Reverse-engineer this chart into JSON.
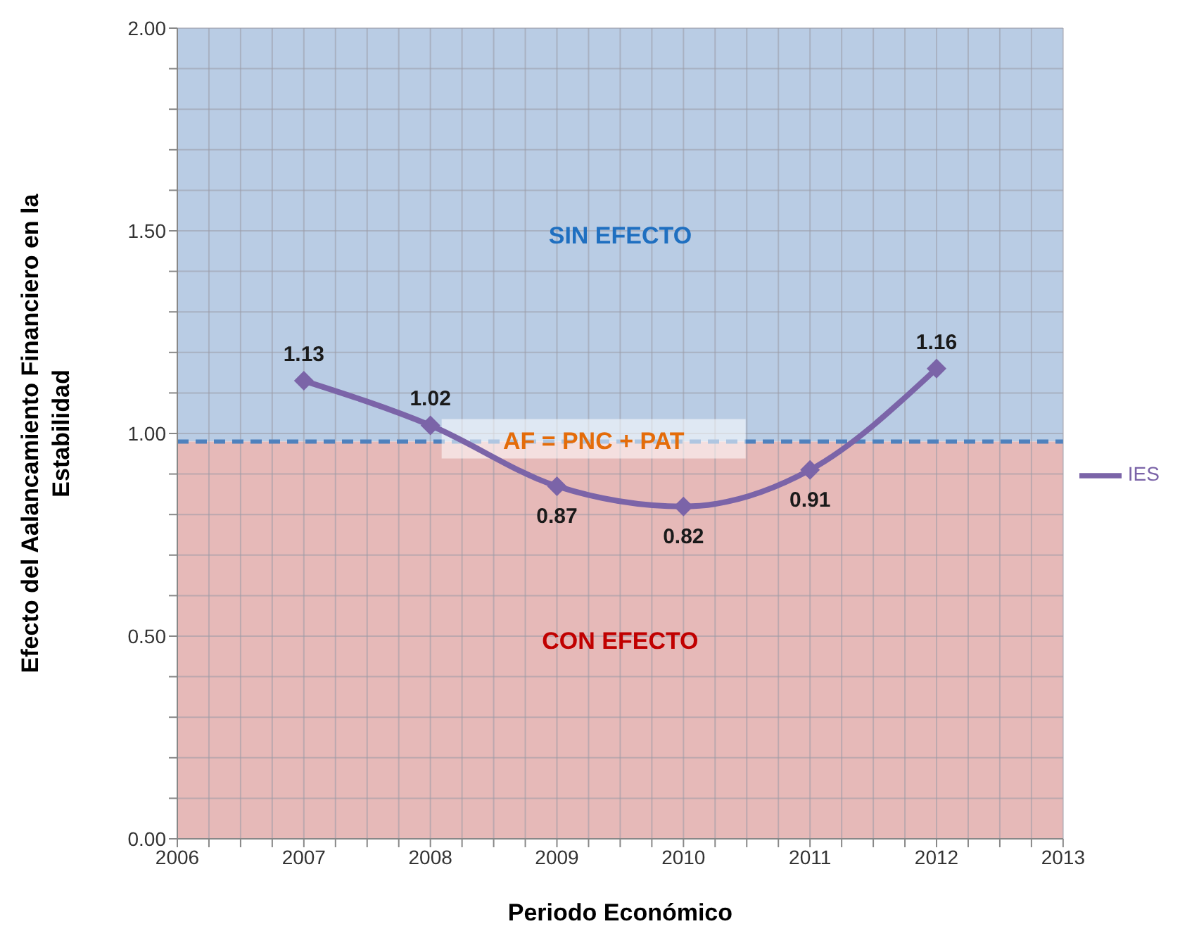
{
  "chart_data": {
    "type": "line",
    "xlabel": "Periodo Económico",
    "ylabel": "Efecto del Aalancamiento Financiero en la Estabilidad",
    "x": [
      2007,
      2008,
      2009,
      2010,
      2011,
      2012
    ],
    "series": [
      {
        "name": "IES",
        "color": "#7b64a8",
        "values": [
          1.13,
          1.02,
          0.87,
          0.82,
          0.91,
          1.16
        ]
      }
    ],
    "xlim": [
      2006,
      2013
    ],
    "xticks": [
      2006,
      {
        "value": 2006.25,
        "label": null
      },
      {
        "value": 2006.5,
        "label": null
      },
      {
        "value": 2006.75,
        "label": null
      },
      2007,
      {
        "value": 2007.25,
        "label": null
      },
      {
        "value": 2007.5,
        "label": null
      },
      {
        "value": 2007.75,
        "label": null
      },
      2008,
      {
        "value": 2008.25,
        "label": null
      },
      {
        "value": 2008.5,
        "label": null
      },
      {
        "value": 2008.75,
        "label": null
      },
      2009,
      {
        "value": 2009.25,
        "label": null
      },
      {
        "value": 2009.5,
        "label": null
      },
      {
        "value": 2009.75,
        "label": null
      },
      2010,
      {
        "value": 2010.25,
        "label": null
      },
      {
        "value": 2010.5,
        "label": null
      },
      {
        "value": 2010.75,
        "label": null
      },
      2011,
      {
        "value": 2011.25,
        "label": null
      },
      {
        "value": 2011.5,
        "label": null
      },
      {
        "value": 2011.75,
        "label": null
      },
      2012,
      {
        "value": 2012.25,
        "label": null
      },
      {
        "value": 2012.5,
        "label": null
      },
      {
        "value": 2012.75,
        "label": null
      },
      2013
    ],
    "ylim": [
      0,
      2
    ],
    "yticks": [
      {
        "value": 0,
        "label": "0.00"
      },
      {
        "value": 0.1,
        "label": null
      },
      {
        "value": 0.2,
        "label": null
      },
      {
        "value": 0.3,
        "label": null
      },
      {
        "value": 0.4,
        "label": null
      },
      {
        "value": 0.5,
        "label": "0.50"
      },
      {
        "value": 0.6,
        "label": null
      },
      {
        "value": 0.7,
        "label": null
      },
      {
        "value": 0.8,
        "label": null
      },
      {
        "value": 0.9,
        "label": null
      },
      {
        "value": 1,
        "label": "1.00"
      },
      {
        "value": 1.1,
        "label": null
      },
      {
        "value": 1.2,
        "label": null
      },
      {
        "value": 1.3,
        "label": null
      },
      {
        "value": 1.4,
        "label": null
      },
      {
        "value": 1.5,
        "label": "1.50"
      },
      {
        "value": 1.6,
        "label": null
      },
      {
        "value": 1.7,
        "label": null
      },
      {
        "value": 1.8,
        "label": null
      },
      {
        "value": 1.9,
        "label": null
      },
      {
        "value": 2,
        "label": "2.00"
      }
    ],
    "bands": [
      {
        "axis": "y",
        "from": 0.98,
        "to": 2,
        "label": "SIN EFECTO",
        "color": "#b9cce4"
      },
      {
        "axis": "y",
        "from": 0,
        "to": 0.98,
        "label": "CON EFECTO",
        "color": "#e6b9b8"
      }
    ],
    "ref_lines": [
      {
        "axis": "y",
        "value": 0.98,
        "label": "AF = PNC + PAT",
        "color": "#4f81bd",
        "line_style": "dashed"
      }
    ],
    "grid": true,
    "legend": "right",
    "marker": "diamond",
    "line_style": "solid",
    "data_labels": true
  }
}
